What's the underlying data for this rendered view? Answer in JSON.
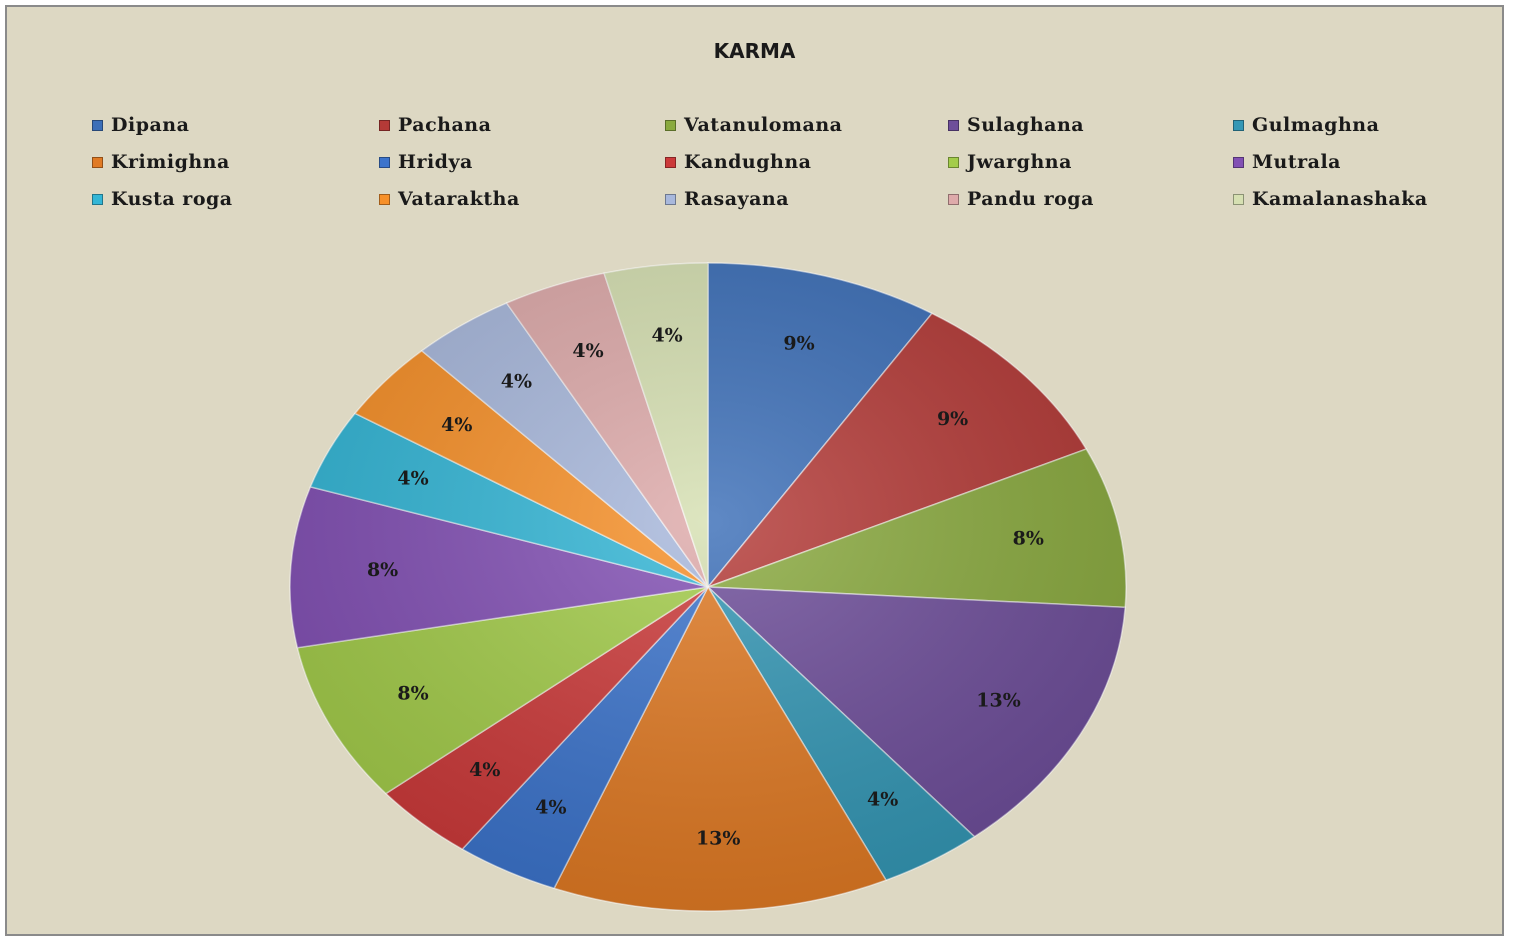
{
  "chart_data": {
    "type": "pie",
    "title": "KARMA",
    "legend_position": "top",
    "categories": [
      "Dipana",
      "Pachana",
      "Vatanulomana",
      "Sulaghana",
      "Gulmaghna",
      "Krimighna",
      "Hridya",
      "Kandughna",
      "Jwarghna",
      "Mutrala",
      "Kusta roga",
      "Vataraktha",
      "Rasayana",
      "Pandu roga",
      "Kamalanashaka"
    ],
    "values": [
      9,
      9,
      8,
      13,
      4,
      13,
      4,
      4,
      8,
      8,
      4,
      4,
      4,
      4,
      4
    ],
    "labels": [
      "9%",
      "9%",
      "8%",
      "13%",
      "4%",
      "13%",
      "4%",
      "4%",
      "8%",
      "8%",
      "4%",
      "4%",
      "4%",
      "4%",
      "4%"
    ],
    "colors": [
      "#3c6fb8",
      "#b43a37",
      "#8aaa3f",
      "#6e4e9a",
      "#3497b5",
      "#e07a24",
      "#3c74cc",
      "#cc3a3a",
      "#a3cc4a",
      "#8250b4",
      "#33b6d6",
      "#f79028",
      "#a8b8dc",
      "#deaaaa",
      "#d6e0b2"
    ]
  }
}
